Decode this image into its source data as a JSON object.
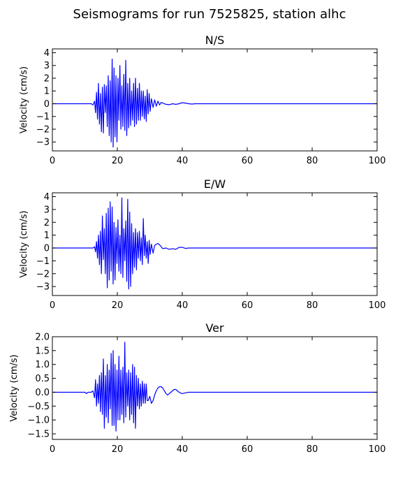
{
  "suptitle": "Seismograms for run 7525825, station alhc",
  "colors": {
    "trace": "#0000ff",
    "axes": "#000000",
    "background": "#ffffff"
  },
  "chart_data": [
    {
      "type": "line",
      "title": "N/S",
      "xlabel": "",
      "ylabel": "Velocity (cm/s)",
      "xlim": [
        0,
        100
      ],
      "ylim": [
        -3.7,
        4.3
      ],
      "xticks": [
        0,
        20,
        40,
        60,
        80,
        100
      ],
      "yticks": [
        -3,
        -2,
        -1,
        0,
        1,
        2,
        3,
        4
      ],
      "grid": false,
      "series": [
        {
          "x": [
            0,
            12,
            12.5,
            13,
            13.3,
            13.6,
            13.9,
            14.2,
            14.5,
            14.8,
            15.1,
            15.4,
            15.7,
            16,
            16.3,
            16.6,
            16.9,
            17.2,
            17.5,
            17.8,
            18.1,
            18.4,
            18.7,
            19,
            19.3,
            19.6,
            19.9,
            20.2,
            20.5,
            20.8,
            21.1,
            21.4,
            21.7,
            22,
            22.3,
            22.6,
            22.9,
            23.2,
            23.5,
            23.8,
            24.1,
            24.4,
            24.7,
            25,
            25.3,
            25.6,
            25.9,
            26.2,
            26.5,
            26.8,
            27.1,
            27.4,
            27.7,
            28,
            28.3,
            28.6,
            28.9,
            29.2,
            29.5,
            29.8,
            30.1,
            30.5,
            31,
            31.5,
            32,
            32.5,
            33,
            33.5,
            34,
            35,
            36,
            37,
            38,
            39,
            40,
            41,
            42,
            43,
            44,
            46,
            50,
            100
          ],
          "values": [
            0,
            0,
            -0.1,
            0.2,
            -0.7,
            0.9,
            -1.2,
            1.6,
            -1.6,
            0.8,
            -2.2,
            1.3,
            -2.3,
            1.5,
            -0.7,
            1.4,
            -1.8,
            2.2,
            -2.5,
            1.8,
            -3.0,
            3.5,
            -3.4,
            2.8,
            -2.6,
            2.2,
            -3.0,
            2.0,
            -1.3,
            3.0,
            -2.0,
            1.4,
            -1.8,
            2.3,
            -2.1,
            3.4,
            -2.5,
            1.6,
            -1.9,
            2.0,
            -1.7,
            1.0,
            -1.3,
            1.6,
            -1.8,
            2.0,
            -1.6,
            1.2,
            -1.3,
            1.6,
            -1.3,
            1.0,
            -1.0,
            1.0,
            -1.2,
            0.6,
            -1.4,
            1.1,
            -0.8,
            0.8,
            -0.6,
            0.4,
            -0.3,
            0.3,
            -0.2,
            0.2,
            -0.1,
            0.1,
            0.05,
            -0.05,
            -0.08,
            0,
            -0.05,
            0,
            0.08,
            0.05,
            0,
            -0.03,
            0,
            0,
            0,
            0
          ]
        }
      ]
    },
    {
      "type": "line",
      "title": "E/W",
      "xlabel": "",
      "ylabel": "Velocity (cm/s)",
      "xlim": [
        0,
        100
      ],
      "ylim": [
        -3.7,
        4.3
      ],
      "xticks": [
        0,
        20,
        40,
        60,
        80,
        100
      ],
      "yticks": [
        -3,
        -2,
        -1,
        0,
        1,
        2,
        3,
        4
      ],
      "grid": false,
      "series": [
        {
          "x": [
            0,
            12.5,
            13,
            13.3,
            13.6,
            13.9,
            14.2,
            14.5,
            14.8,
            15.1,
            15.4,
            15.7,
            16,
            16.3,
            16.6,
            16.9,
            17.2,
            17.5,
            17.8,
            18.1,
            18.4,
            18.7,
            19,
            19.3,
            19.6,
            19.9,
            20.2,
            20.5,
            20.8,
            21.1,
            21.4,
            21.7,
            22,
            22.3,
            22.6,
            22.9,
            23.2,
            23.5,
            23.8,
            24.1,
            24.4,
            24.7,
            25,
            25.3,
            25.6,
            25.9,
            26.2,
            26.5,
            26.8,
            27.1,
            27.4,
            27.7,
            28,
            28.3,
            28.6,
            28.9,
            29.2,
            29.5,
            29.8,
            30.1,
            30.5,
            31,
            31.5,
            32,
            32.5,
            33,
            33.5,
            34,
            35,
            36,
            37,
            38,
            39,
            40,
            41,
            42,
            43,
            44,
            46,
            50,
            100
          ],
          "values": [
            0,
            0,
            0.1,
            -0.3,
            0.5,
            -0.8,
            1.0,
            -1.3,
            1.3,
            -2.0,
            2.5,
            -0.9,
            1.5,
            -2.0,
            2.7,
            -3.1,
            3.1,
            -2.5,
            3.6,
            -1.8,
            3.2,
            -2.8,
            2.0,
            -2.5,
            1.6,
            -1.2,
            2.2,
            -1.8,
            1.0,
            -2.0,
            3.9,
            -2.3,
            1.5,
            -1.0,
            2.1,
            -2.6,
            3.8,
            -3.2,
            2.8,
            -3.0,
            1.9,
            -2.0,
            1.2,
            -1.5,
            1.5,
            -1.7,
            1.2,
            -0.8,
            1.3,
            -1.0,
            0.8,
            -1.3,
            2.3,
            -0.6,
            1.0,
            -0.8,
            0.5,
            -1.2,
            0.6,
            -0.5,
            0.3,
            -0.4,
            0.2,
            0.3,
            0.35,
            0.25,
            0.1,
            -0.05,
            0.0,
            -0.1,
            -0.05,
            -0.1,
            0.05,
            0.05,
            -0.03,
            0,
            0,
            0,
            0,
            0,
            0
          ]
        }
      ]
    },
    {
      "type": "line",
      "title": "Ver",
      "xlabel": "",
      "ylabel": "Velocity (cm/s)",
      "xlim": [
        0,
        100
      ],
      "ylim": [
        -1.7,
        2.0
      ],
      "xticks": [
        0,
        20,
        40,
        60,
        80,
        100
      ],
      "yticks": [
        -1.5,
        -1.0,
        -0.5,
        0.0,
        0.5,
        1.0,
        1.5,
        2.0
      ],
      "grid": false,
      "series": [
        {
          "x": [
            0,
            10,
            10.5,
            11,
            12,
            12.5,
            13,
            13.3,
            13.6,
            13.9,
            14.2,
            14.5,
            14.8,
            15.1,
            15.4,
            15.7,
            16,
            16.3,
            16.6,
            16.9,
            17.2,
            17.5,
            17.8,
            18.1,
            18.4,
            18.7,
            19,
            19.3,
            19.6,
            19.9,
            20.2,
            20.5,
            20.8,
            21.1,
            21.4,
            21.7,
            22,
            22.3,
            22.6,
            22.9,
            23.2,
            23.5,
            23.8,
            24.1,
            24.4,
            24.7,
            25,
            25.3,
            25.6,
            25.9,
            26.2,
            26.5,
            26.8,
            27.1,
            27.4,
            27.7,
            28,
            28.3,
            28.6,
            28.9,
            29.2,
            29.5,
            30,
            30.5,
            31,
            31.5,
            32,
            32.5,
            33,
            33.5,
            34,
            34.5,
            35,
            35.5,
            36,
            36.5,
            37,
            37.5,
            38,
            38.5,
            39,
            39.5,
            40,
            41,
            42,
            43,
            44,
            45,
            46,
            48,
            50,
            100
          ],
          "values": [
            0,
            0,
            -0.05,
            0,
            0,
            0.05,
            -0.2,
            0.45,
            -0.5,
            0.3,
            -0.4,
            0.6,
            -0.7,
            0.7,
            -0.8,
            1.2,
            -1.3,
            0.6,
            -0.9,
            1.0,
            -1.1,
            0.8,
            -0.6,
            1.4,
            -1.2,
            1.5,
            -1.2,
            1.0,
            -1.4,
            0.8,
            -1.0,
            1.3,
            -1.0,
            0.8,
            -0.8,
            0.9,
            -1.1,
            1.8,
            -0.9,
            0.7,
            -0.5,
            0.8,
            -1.0,
            0.7,
            -0.8,
            1.0,
            -1.1,
            0.9,
            -1.3,
            0.6,
            -0.5,
            0.5,
            -0.6,
            0.3,
            -0.5,
            0.4,
            -0.4,
            0.3,
            -0.4,
            0.3,
            -0.3,
            -0.3,
            -0.15,
            -0.4,
            -0.3,
            -0.1,
            0.05,
            0.15,
            0.2,
            0.2,
            0.15,
            0.05,
            -0.05,
            -0.1,
            -0.05,
            0.0,
            0.05,
            0.1,
            0.1,
            0.05,
            0.0,
            -0.03,
            -0.05,
            -0.02,
            0.0,
            0.0,
            0.0,
            0.0,
            0.0,
            0.0,
            0.0,
            0.0
          ]
        }
      ]
    }
  ]
}
